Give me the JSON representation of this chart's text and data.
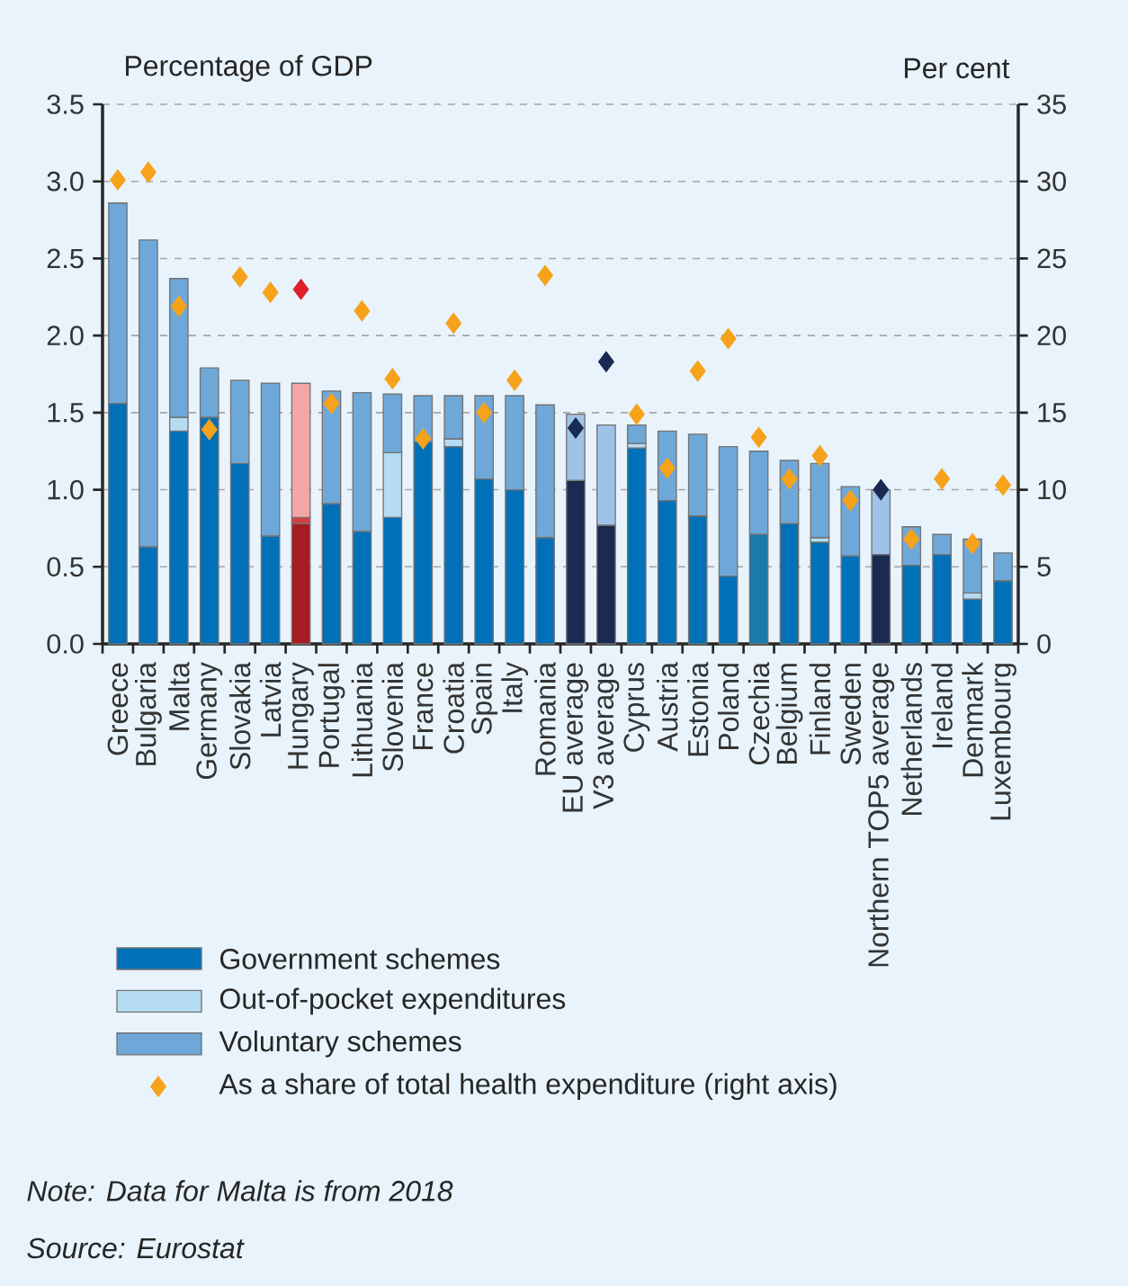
{
  "chart_data": {
    "type": "bar",
    "stacked": true,
    "grid": "y",
    "legend": "bottom left",
    "ylabel": "Percentage of GDP",
    "y2label": "Per cent",
    "categories": [
      "Greece",
      "Bulgaria",
      "Malta",
      "Germany",
      "Slovakia",
      "Latvia",
      "Hungary",
      "Portugal",
      "Lithuania",
      "Slovenia",
      "France",
      "Croatia",
      "Spain",
      "Italy",
      "Romania",
      "EU average",
      "V3 average",
      "Cyprus",
      "Austria",
      "Estonia",
      "Poland",
      "Czechia",
      "Belgium",
      "Finland",
      "Sweden",
      "Northern TOP5 average",
      "Netherlands",
      "Ireland",
      "Denmark",
      "Luxembourg"
    ],
    "ylim": [
      0,
      3.5
    ],
    "yticks": [
      {
        "value": 0,
        "label": "0.0"
      },
      {
        "value": 0.5,
        "label": "0.5"
      },
      {
        "value": 1,
        "label": "1.0"
      },
      {
        "value": 1.5,
        "label": "1.5"
      },
      {
        "value": 2,
        "label": "2.0"
      },
      {
        "value": 2.5,
        "label": "2.5"
      },
      {
        "value": 3,
        "label": "3.0"
      },
      {
        "value": 3.5,
        "label": "3.5"
      }
    ],
    "y2lim": [
      0,
      35
    ],
    "y2ticks": [
      0,
      5,
      10,
      15,
      20,
      25,
      30,
      35
    ],
    "series": [
      {
        "name": "Government schemes",
        "color": "#0070b8",
        "colors": [
          "#0070b8",
          "#0070b8",
          "#0070b8",
          "#0070b8",
          "#0070b8",
          "#0070b8",
          "#a61c22",
          "#0070b8",
          "#0070b8",
          "#0070b8",
          "#0070b8",
          "#0070b8",
          "#0070b8",
          "#0070b8",
          "#0070b8",
          "#1a2a52",
          "#1a2a52",
          "#0070b8",
          "#0070b8",
          "#0070b8",
          "#0070b8",
          "#1a7aaa",
          "#0070b8",
          "#0070b8",
          "#0070b8",
          "#1a2a52",
          "#0070b8",
          "#0070b8",
          "#0070b8",
          "#0070b8"
        ],
        "values": [
          1.56,
          0.63,
          1.38,
          1.47,
          1.17,
          0.7,
          0.78,
          0.91,
          0.73,
          0.82,
          1.31,
          1.28,
          1.07,
          1.0,
          0.69,
          1.06,
          0.77,
          1.27,
          0.93,
          0.83,
          0.44,
          0.71,
          0.78,
          0.66,
          0.57,
          0.58,
          0.51,
          0.58,
          0.29,
          0.41
        ]
      },
      {
        "name": "Out-of-pocket expenditures",
        "color": "#b5dcf3",
        "colors": [
          "#b5dcf3",
          "#b5dcf3",
          "#b5dcf3",
          "#b5dcf3",
          "#b5dcf3",
          "#b5dcf3",
          "#d04040",
          "#b5dcf3",
          "#b5dcf3",
          "#b5dcf3",
          "#b5dcf3",
          "#b5dcf3",
          "#b5dcf3",
          "#b5dcf3",
          "#b5dcf3",
          "#b5dcf3",
          "#b5dcf3",
          "#b5dcf3",
          "#b5dcf3",
          "#b5dcf3",
          "#b5dcf3",
          "#b5dcf3",
          "#b5dcf3",
          "#b5dcf3",
          "#b5dcf3",
          "#b5dcf3",
          "#b5dcf3",
          "#b5dcf3",
          "#b5dcf3",
          "#b5dcf3"
        ],
        "values": [
          null,
          null,
          0.09,
          null,
          null,
          null,
          0.04,
          null,
          null,
          0.42,
          null,
          0.05,
          null,
          null,
          null,
          null,
          null,
          0.03,
          null,
          null,
          null,
          null,
          null,
          0.03,
          null,
          null,
          null,
          null,
          0.04,
          null
        ]
      },
      {
        "name": "Voluntary schemes",
        "color": "#6ea8d8",
        "colors": [
          "#6ea8d8",
          "#6ea8d8",
          "#6ea8d8",
          "#6ea8d8",
          "#6ea8d8",
          "#6ea8d8",
          "#f4a6a6",
          "#6ea8d8",
          "#6ea8d8",
          "#6ea8d8",
          "#6ea8d8",
          "#6ea8d8",
          "#6ea8d8",
          "#6ea8d8",
          "#6ea8d8",
          "#9fc3e8",
          "#9fc3e8",
          "#6ea8d8",
          "#6ea8d8",
          "#6ea8d8",
          "#6ea8d8",
          "#6ea8d8",
          "#6ea8d8",
          "#6ea8d8",
          "#6ea8d8",
          "#9fc3e8",
          "#6ea8d8",
          "#6ea8d8",
          "#6ea8d8",
          "#6ea8d8"
        ],
        "values": [
          1.3,
          1.99,
          0.9,
          0.32,
          0.54,
          0.99,
          0.87,
          0.73,
          0.9,
          0.38,
          0.3,
          0.28,
          0.54,
          0.61,
          0.86,
          0.43,
          0.65,
          0.12,
          0.45,
          0.53,
          0.84,
          0.54,
          0.41,
          0.48,
          0.45,
          0.42,
          0.25,
          0.13,
          0.35,
          0.18
        ]
      },
      {
        "name": "As a share of total health expenditure (right axis)",
        "type": "scatter",
        "axis": "y2",
        "marker": "diamond",
        "color": "#f7a21b",
        "colors": [
          "#f7a21b",
          "#f7a21b",
          "#f7a21b",
          "#f7a21b",
          "#f7a21b",
          "#f7a21b",
          "#e0202a",
          "#f7a21b",
          "#f7a21b",
          "#f7a21b",
          "#f7a21b",
          "#f7a21b",
          "#f7a21b",
          "#f7a21b",
          "#f7a21b",
          "#1a2a52",
          "#1a2a52",
          "#f7a21b",
          "#f7a21b",
          "#f7a21b",
          "#f7a21b",
          "#f7a21b",
          "#f7a21b",
          "#f7a21b",
          "#f7a21b",
          "#1a2a52",
          "#f7a21b",
          "#f7a21b",
          "#f7a21b",
          "#f7a21b"
        ],
        "values": [
          30.1,
          30.6,
          21.9,
          13.9,
          23.8,
          22.8,
          23.0,
          15.6,
          21.6,
          17.2,
          13.3,
          20.8,
          15.0,
          17.1,
          23.9,
          14.0,
          18.3,
          14.9,
          11.4,
          17.7,
          19.8,
          13.4,
          10.7,
          12.2,
          9.3,
          10.0,
          6.8,
          10.7,
          6.5,
          10.3
        ]
      }
    ],
    "annotations": [
      "Note: Data for Malta is from 2018",
      "Source: Eurostat"
    ]
  }
}
